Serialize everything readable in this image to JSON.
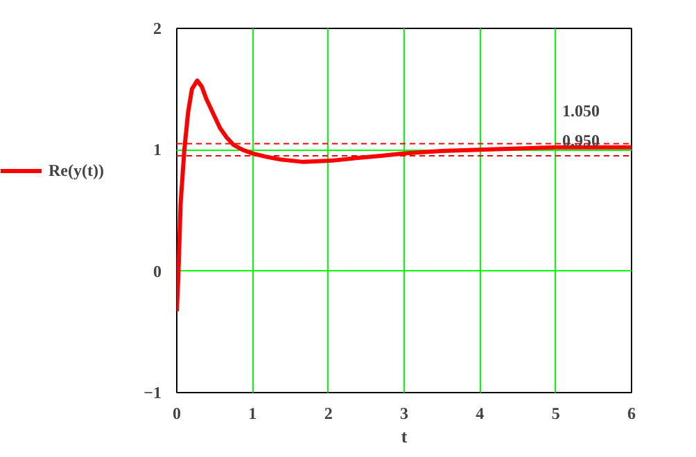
{
  "chart_data": {
    "type": "line",
    "xlabel": "t",
    "xlim": [
      0,
      6
    ],
    "xticks": [
      0,
      1,
      2,
      3,
      4,
      5,
      6
    ],
    "ylim": [
      -1,
      2
    ],
    "yticks": [
      -1,
      0,
      1,
      2
    ],
    "grid": true,
    "legend": "left",
    "marker": "none",
    "line_style": "solid",
    "x": [
      0,
      0.02,
      0.05,
      0.1,
      0.15,
      0.2,
      0.27,
      0.33,
      0.39,
      0.48,
      0.57,
      0.66,
      0.75,
      0.87,
      1.0,
      1.2,
      1.37,
      1.67,
      2.03,
      2.34,
      2.7,
      3.0,
      3.5,
      4.0,
      4.5,
      5.0,
      5.5,
      6.0
    ],
    "series": [
      {
        "name": "Re(y(t))",
        "color": "#ff0000",
        "values": [
          -0.33,
          -0.05,
          0.55,
          1.0,
          1.31,
          1.5,
          1.57,
          1.52,
          1.42,
          1.3,
          1.18,
          1.1,
          1.04,
          1.0,
          0.97,
          0.94,
          0.92,
          0.9,
          0.91,
          0.93,
          0.95,
          0.97,
          0.99,
          1.0,
          1.01,
          1.02,
          1.02,
          1.02
        ]
      }
    ],
    "ref_lines": [
      {
        "axis": "y",
        "value": 1.05,
        "label": "1.050",
        "color": "#ff0000",
        "line_style": "dashed"
      },
      {
        "axis": "y",
        "value": 0.95,
        "label": "0.950",
        "color": "#ff0000",
        "line_style": "dashed"
      }
    ]
  }
}
